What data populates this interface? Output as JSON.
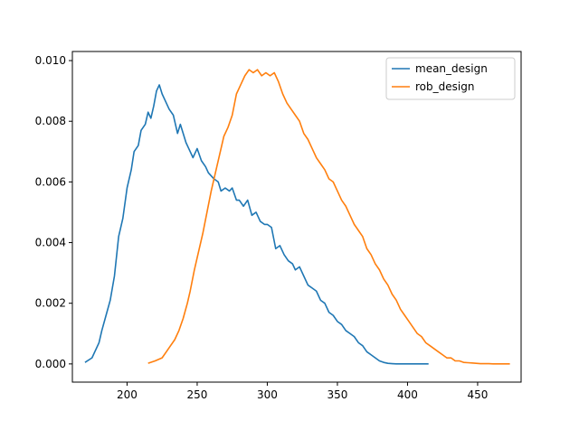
{
  "chart_data": {
    "type": "line",
    "title": "",
    "xlabel": "",
    "ylabel": "",
    "xlim": [
      161,
      481
    ],
    "ylim": [
      -0.0006,
      0.0103
    ],
    "xticks": [
      200,
      250,
      300,
      350,
      400,
      450
    ],
    "yticks": [
      0.0,
      0.002,
      0.004,
      0.006,
      0.008,
      0.01
    ],
    "xtick_labels": [
      "200",
      "250",
      "300",
      "350",
      "400",
      "450"
    ],
    "ytick_labels": [
      "0.000",
      "0.002",
      "0.004",
      "0.006",
      "0.008",
      "0.010"
    ],
    "grid": false,
    "legend_position": "top-right",
    "series": [
      {
        "name": "mean_design",
        "color": "#1f77b4",
        "x": [
          170,
          175,
          180,
          182,
          185,
          188,
          191,
          194,
          197,
          200,
          203,
          205,
          208,
          210,
          213,
          215,
          217,
          219,
          221,
          223,
          225,
          228,
          230,
          233,
          236,
          238,
          240,
          242,
          244,
          247,
          250,
          253,
          256,
          258,
          260,
          262,
          265,
          267,
          270,
          273,
          275,
          278,
          280,
          283,
          286,
          289,
          292,
          295,
          298,
          300,
          303,
          306,
          309,
          312,
          315,
          318,
          320,
          323,
          326,
          329,
          332,
          335,
          338,
          341,
          344,
          347,
          350,
          353,
          356,
          359,
          362,
          365,
          368,
          371,
          374,
          377,
          380,
          383,
          386,
          389,
          392,
          395,
          398,
          401,
          404,
          407,
          410,
          413,
          415
        ],
        "y": [
          5e-05,
          0.0002,
          0.0007,
          0.0011,
          0.0016,
          0.0021,
          0.0029,
          0.0042,
          0.0048,
          0.0058,
          0.0064,
          0.007,
          0.0072,
          0.0077,
          0.0079,
          0.0083,
          0.0081,
          0.0085,
          0.009,
          0.0092,
          0.0089,
          0.0086,
          0.0084,
          0.0082,
          0.0076,
          0.0079,
          0.0076,
          0.0073,
          0.0071,
          0.0068,
          0.0071,
          0.0067,
          0.0065,
          0.0063,
          0.0062,
          0.0061,
          0.006,
          0.0057,
          0.0058,
          0.0057,
          0.0058,
          0.0054,
          0.0054,
          0.0052,
          0.0054,
          0.0049,
          0.005,
          0.0047,
          0.0046,
          0.0046,
          0.0045,
          0.0038,
          0.0039,
          0.0036,
          0.0034,
          0.0033,
          0.0031,
          0.0032,
          0.0029,
          0.0026,
          0.0025,
          0.0024,
          0.0021,
          0.002,
          0.0017,
          0.0016,
          0.0014,
          0.0013,
          0.0011,
          0.001,
          0.0009,
          0.0007,
          0.0006,
          0.0004,
          0.0003,
          0.0002,
          0.0001,
          5e-05,
          2e-05,
          1e-05,
          0.0,
          0.0,
          0.0,
          0.0,
          0.0,
          0.0,
          0.0,
          0.0,
          0.0
        ]
      },
      {
        "name": "rob_design",
        "color": "#ff7f0e",
        "x": [
          215,
          220,
          225,
          228,
          231,
          234,
          237,
          240,
          243,
          245,
          248,
          251,
          254,
          257,
          260,
          263,
          266,
          269,
          272,
          275,
          278,
          281,
          284,
          287,
          290,
          293,
          296,
          299,
          302,
          305,
          308,
          311,
          314,
          317,
          320,
          323,
          326,
          329,
          332,
          335,
          338,
          341,
          344,
          347,
          350,
          353,
          356,
          359,
          362,
          365,
          368,
          371,
          374,
          377,
          380,
          383,
          386,
          389,
          392,
          395,
          398,
          401,
          404,
          407,
          410,
          413,
          416,
          419,
          422,
          425,
          428,
          431,
          434,
          437,
          440,
          443,
          446,
          449,
          452,
          455,
          458,
          461,
          464,
          467,
          470,
          473
        ],
        "y": [
          2e-05,
          0.0001,
          0.0002,
          0.0004,
          0.0006,
          0.0008,
          0.0011,
          0.0015,
          0.002,
          0.0024,
          0.0031,
          0.0037,
          0.0043,
          0.005,
          0.0057,
          0.0063,
          0.0069,
          0.0075,
          0.0078,
          0.0082,
          0.0089,
          0.0092,
          0.0095,
          0.0097,
          0.0096,
          0.0097,
          0.0095,
          0.0096,
          0.0095,
          0.0096,
          0.0093,
          0.0089,
          0.0086,
          0.0084,
          0.0082,
          0.008,
          0.0076,
          0.0074,
          0.0071,
          0.0068,
          0.0066,
          0.0064,
          0.0061,
          0.006,
          0.0057,
          0.0054,
          0.0052,
          0.0049,
          0.0046,
          0.0044,
          0.0042,
          0.0038,
          0.0036,
          0.0033,
          0.0031,
          0.0028,
          0.0026,
          0.0023,
          0.0021,
          0.0018,
          0.0016,
          0.0014,
          0.0012,
          0.001,
          0.0009,
          0.0007,
          0.0006,
          0.0005,
          0.0004,
          0.0003,
          0.0002,
          0.0002,
          0.0001,
          0.0001,
          5e-05,
          4e-05,
          3e-05,
          2e-05,
          1e-05,
          1e-05,
          1e-05,
          0.0,
          0.0,
          0.0,
          0.0,
          0.0
        ]
      }
    ]
  }
}
